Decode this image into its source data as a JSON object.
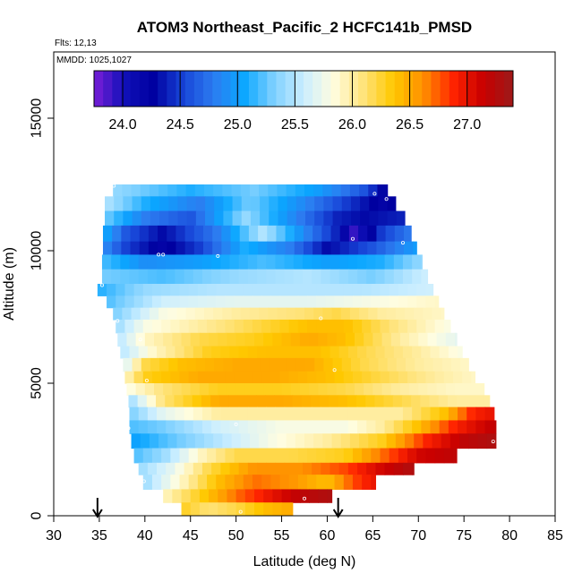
{
  "chart_data": {
    "type": "heatmap",
    "title": "ATOM3 Northeast_Pacific_2 HCFC141b_PMSD",
    "note_flights": "Flts: 12,13",
    "note_dates": "MMDD: 1025,1027",
    "xlabel": "Latitude (deg N)",
    "ylabel": "Altitude (m)",
    "xlim": [
      30,
      85
    ],
    "ylim": [
      0,
      17500
    ],
    "x_ticks": [
      30,
      35,
      40,
      45,
      50,
      55,
      60,
      65,
      70,
      75,
      80,
      85
    ],
    "y_ticks": [
      0,
      5000,
      10000,
      15000
    ],
    "colorbar": {
      "min": 23.75,
      "max": 27.4,
      "ticks": [
        24.0,
        24.5,
        25.0,
        25.5,
        26.0,
        26.5,
        27.0
      ],
      "tick_labels": [
        "24.0",
        "24.5",
        "25.0",
        "25.5",
        "26.0",
        "26.5",
        "27.0"
      ],
      "colors": [
        "#7a1ed8",
        "#1010b8",
        "#0000a0",
        "#1846d8",
        "#2c7cf0",
        "#0aa6ff",
        "#7dd0ff",
        "#cbeeff",
        "#fffde0",
        "#ffe37a",
        "#ffc800",
        "#ff9000",
        "#ff2400",
        "#c80000",
        "#9c1a1a"
      ]
    },
    "grid": false,
    "arrows_latitude": [
      34.8,
      61.2
    ],
    "layers": [
      {
        "alt": [
          12050,
          12500
        ],
        "lat": [
          36.5,
          66.6
        ],
        "values": [
          [
            36.5,
            25.4
          ],
          [
            45.0,
            25.1
          ],
          [
            52.0,
            25.3
          ],
          [
            59.0,
            25.0
          ],
          [
            64.0,
            24.6
          ],
          [
            66.6,
            24.2
          ]
        ]
      },
      {
        "alt": [
          11500,
          12050
        ],
        "lat": [
          35.6,
          67.5
        ],
        "values": [
          [
            35.6,
            25.5
          ],
          [
            40.0,
            25.1
          ],
          [
            46.0,
            24.8
          ],
          [
            51.5,
            25.3
          ],
          [
            57.0,
            24.9
          ],
          [
            62.0,
            24.5
          ],
          [
            66.0,
            24.2
          ],
          [
            67.5,
            24.3
          ]
        ]
      },
      {
        "alt": [
          10950,
          11500
        ],
        "lat": [
          35.6,
          68.5
        ],
        "values": [
          [
            35.6,
            25.3
          ],
          [
            40.0,
            24.8
          ],
          [
            45.0,
            24.6
          ],
          [
            51.0,
            25.4
          ],
          [
            57.0,
            24.8
          ],
          [
            61.0,
            24.4
          ],
          [
            64.0,
            24.3
          ],
          [
            68.5,
            24.4
          ]
        ]
      },
      {
        "alt": [
          10350,
          10950
        ],
        "lat": [
          35.4,
          69.2
        ],
        "values": [
          [
            35.4,
            25.1
          ],
          [
            38.0,
            24.6
          ],
          [
            42.0,
            24.3
          ],
          [
            48.0,
            24.8
          ],
          [
            53.0,
            25.5
          ],
          [
            58.0,
            24.8
          ],
          [
            61.0,
            24.4
          ],
          [
            63.0,
            23.9
          ],
          [
            66.0,
            24.5
          ],
          [
            69.2,
            24.8
          ]
        ]
      },
      {
        "alt": [
          9850,
          10350
        ],
        "lat": [
          35.4,
          69.8
        ],
        "values": [
          [
            35.4,
            24.9
          ],
          [
            38.0,
            24.5
          ],
          [
            42.0,
            24.2
          ],
          [
            46.0,
            24.5
          ],
          [
            51.0,
            25.1
          ],
          [
            56.0,
            24.8
          ],
          [
            60.0,
            24.3
          ],
          [
            65.0,
            24.6
          ],
          [
            69.8,
            25.0
          ]
        ]
      },
      {
        "alt": [
          9300,
          9850
        ],
        "lat": [
          35.3,
          70.4
        ],
        "values": [
          [
            35.3,
            25.2
          ],
          [
            40.0,
            24.9
          ],
          [
            46.0,
            25.0
          ],
          [
            53.0,
            25.2
          ],
          [
            60.0,
            25.0
          ],
          [
            66.0,
            25.1
          ],
          [
            70.4,
            25.4
          ]
        ]
      },
      {
        "alt": [
          8750,
          9300
        ],
        "lat": [
          35.3,
          71.0
        ],
        "values": [
          [
            35.3,
            25.3
          ],
          [
            42.0,
            25.2
          ],
          [
            50.0,
            25.4
          ],
          [
            58.0,
            25.5
          ],
          [
            65.0,
            25.3
          ],
          [
            71.0,
            25.6
          ]
        ]
      },
      {
        "alt": [
          8300,
          8750
        ],
        "lat": [
          34.8,
          71.6
        ],
        "values": [
          [
            34.8,
            25.1
          ],
          [
            40.0,
            25.4
          ],
          [
            48.0,
            25.5
          ],
          [
            56.0,
            25.5
          ],
          [
            64.0,
            25.5
          ],
          [
            71.6,
            25.6
          ]
        ]
      },
      {
        "alt": [
          7850,
          8300
        ],
        "lat": [
          35.8,
          72.2
        ],
        "values": [
          [
            35.8,
            25.2
          ],
          [
            42.0,
            25.6
          ],
          [
            50.0,
            25.7
          ],
          [
            58.0,
            25.7
          ],
          [
            65.0,
            25.8
          ],
          [
            72.2,
            25.9
          ]
        ]
      },
      {
        "alt": [
          7400,
          7850
        ],
        "lat": [
          36.5,
          72.8
        ],
        "values": [
          [
            36.5,
            25.3
          ],
          [
            42.0,
            25.8
          ],
          [
            50.0,
            26.0
          ],
          [
            57.0,
            26.1
          ],
          [
            61.0,
            26.2
          ],
          [
            66.0,
            26.0
          ],
          [
            72.8,
            25.9
          ]
        ]
      },
      {
        "alt": [
          6900,
          7400
        ],
        "lat": [
          36.8,
          73.5
        ],
        "values": [
          [
            36.8,
            25.4
          ],
          [
            40.0,
            25.8
          ],
          [
            46.0,
            26.0
          ],
          [
            52.0,
            26.2
          ],
          [
            58.0,
            26.4
          ],
          [
            62.0,
            26.4
          ],
          [
            67.0,
            26.1
          ],
          [
            73.5,
            25.8
          ]
        ]
      },
      {
        "alt": [
          6400,
          6900
        ],
        "lat": [
          37.0,
          74.2
        ],
        "values": [
          [
            37.0,
            25.5
          ],
          [
            40.0,
            25.9
          ],
          [
            46.0,
            26.2
          ],
          [
            52.0,
            26.3
          ],
          [
            58.0,
            26.5
          ],
          [
            62.0,
            26.4
          ],
          [
            68.0,
            26.0
          ],
          [
            74.2,
            25.7
          ]
        ]
      },
      {
        "alt": [
          5950,
          6400
        ],
        "lat": [
          37.3,
          74.8
        ],
        "values": [
          [
            37.3,
            25.5
          ],
          [
            41.0,
            25.9
          ],
          [
            47.0,
            26.3
          ],
          [
            53.0,
            26.4
          ],
          [
            59.0,
            26.4
          ],
          [
            64.0,
            26.2
          ],
          [
            70.0,
            26.0
          ],
          [
            74.8,
            25.8
          ]
        ]
      },
      {
        "alt": [
          5450,
          5950
        ],
        "lat": [
          37.6,
          75.5
        ],
        "values": [
          [
            37.6,
            25.6
          ],
          [
            40.0,
            26.2
          ],
          [
            44.0,
            26.4
          ],
          [
            50.0,
            26.5
          ],
          [
            58.0,
            26.5
          ],
          [
            64.0,
            26.2
          ],
          [
            70.0,
            26.0
          ],
          [
            75.5,
            25.9
          ]
        ]
      },
      {
        "alt": [
          5000,
          5450
        ],
        "lat": [
          37.8,
          76.2
        ],
        "values": [
          [
            37.8,
            25.9
          ],
          [
            40.0,
            26.3
          ],
          [
            46.0,
            26.5
          ],
          [
            54.0,
            26.5
          ],
          [
            60.0,
            26.4
          ],
          [
            66.0,
            26.2
          ],
          [
            72.0,
            26.0
          ],
          [
            76.2,
            25.9
          ]
        ]
      },
      {
        "alt": [
          4550,
          5000
        ],
        "lat": [
          38.0,
          77.2
        ],
        "values": [
          [
            38.0,
            25.8
          ],
          [
            42.0,
            26.1
          ],
          [
            48.0,
            26.3
          ],
          [
            55.0,
            26.3
          ],
          [
            62.0,
            26.2
          ],
          [
            68.0,
            26.0
          ],
          [
            74.0,
            25.9
          ],
          [
            77.2,
            25.9
          ]
        ]
      },
      {
        "alt": [
          4100,
          4550
        ],
        "lat": [
          38.2,
          77.8
        ],
        "values": [
          [
            38.2,
            25.4
          ],
          [
            42.0,
            26.1
          ],
          [
            48.0,
            26.5
          ],
          [
            55.0,
            26.5
          ],
          [
            62.0,
            26.4
          ],
          [
            68.0,
            26.2
          ],
          [
            74.0,
            26.0
          ],
          [
            77.8,
            26.0
          ]
        ]
      },
      {
        "alt": [
          3600,
          4100
        ],
        "lat": [
          38.3,
          78.3
        ],
        "values": [
          [
            38.3,
            25.3
          ],
          [
            42.0,
            25.7
          ],
          [
            48.0,
            26.0
          ],
          [
            55.0,
            26.0
          ],
          [
            62.0,
            26.0
          ],
          [
            68.0,
            26.0
          ],
          [
            73.0,
            26.4
          ],
          [
            76.0,
            26.9
          ],
          [
            78.3,
            27.0
          ]
        ]
      },
      {
        "alt": [
          3100,
          3600
        ],
        "lat": [
          38.3,
          78.5
        ],
        "values": [
          [
            38.3,
            25.2
          ],
          [
            42.0,
            25.3
          ],
          [
            48.0,
            25.6
          ],
          [
            55.0,
            25.8
          ],
          [
            62.0,
            25.8
          ],
          [
            66.0,
            26.0
          ],
          [
            70.0,
            26.4
          ],
          [
            74.0,
            26.9
          ],
          [
            78.5,
            27.2
          ]
        ]
      },
      {
        "alt": [
          2550,
          3100
        ],
        "lat": [
          38.5,
          78.5
        ],
        "values": [
          [
            38.5,
            25.0
          ],
          [
            42.0,
            25.2
          ],
          [
            48.0,
            25.5
          ],
          [
            54.0,
            25.8
          ],
          [
            60.0,
            26.0
          ],
          [
            66.0,
            26.3
          ],
          [
            71.0,
            26.9
          ],
          [
            75.0,
            27.2
          ],
          [
            78.5,
            27.3
          ]
        ]
      },
      {
        "alt": [
          2000,
          2550
        ],
        "lat": [
          38.8,
          74.2
        ],
        "values": [
          [
            38.8,
            25.2
          ],
          [
            42.0,
            25.4
          ],
          [
            46.0,
            25.9
          ],
          [
            50.0,
            26.2
          ],
          [
            56.0,
            26.2
          ],
          [
            62.0,
            26.3
          ],
          [
            66.0,
            26.7
          ],
          [
            70.0,
            27.1
          ],
          [
            74.2,
            27.2
          ]
        ]
      },
      {
        "alt": [
          1550,
          2000
        ],
        "lat": [
          39.3,
          69.5
        ],
        "values": [
          [
            39.3,
            25.4
          ],
          [
            43.0,
            25.7
          ],
          [
            47.0,
            26.2
          ],
          [
            52.0,
            26.6
          ],
          [
            57.0,
            26.6
          ],
          [
            62.0,
            26.8
          ],
          [
            66.0,
            27.1
          ],
          [
            69.5,
            27.3
          ]
        ]
      },
      {
        "alt": [
          1000,
          1550
        ],
        "lat": [
          39.8,
          65.3
        ],
        "values": [
          [
            39.8,
            25.4
          ],
          [
            44.0,
            25.9
          ],
          [
            48.0,
            26.4
          ],
          [
            52.0,
            26.7
          ],
          [
            56.0,
            26.6
          ],
          [
            60.0,
            26.4
          ],
          [
            63.0,
            26.8
          ],
          [
            65.3,
            27.0
          ]
        ]
      },
      {
        "alt": [
          500,
          1000
        ],
        "lat": [
          42.0,
          60.5
        ],
        "values": [
          [
            42.0,
            25.9
          ],
          [
            46.0,
            26.3
          ],
          [
            50.0,
            26.7
          ],
          [
            54.0,
            27.0
          ],
          [
            57.0,
            27.2
          ],
          [
            60.5,
            27.3
          ]
        ]
      },
      {
        "alt": [
          0,
          500
        ],
        "lat": [
          44.0,
          56.2
        ],
        "values": [
          [
            44.0,
            26.3
          ],
          [
            47.0,
            26.1
          ],
          [
            50.0,
            26.2
          ],
          [
            53.0,
            26.4
          ],
          [
            56.2,
            26.5
          ]
        ]
      }
    ],
    "sample_points": [
      [
        36.6,
        12450
      ],
      [
        35.4,
        11650
      ],
      [
        65.2,
        12150
      ],
      [
        66.5,
        11950
      ],
      [
        41.5,
        9850
      ],
      [
        42.0,
        9850
      ],
      [
        48.0,
        9800
      ],
      [
        62.8,
        10450
      ],
      [
        68.3,
        10300
      ],
      [
        35.3,
        8700
      ],
      [
        37.0,
        7350
      ],
      [
        59.3,
        7450
      ],
      [
        39.5,
        6650
      ],
      [
        60.8,
        5500
      ],
      [
        40.2,
        5100
      ],
      [
        50.0,
        3450
      ],
      [
        38.2,
        3300
      ],
      [
        78.2,
        2800
      ],
      [
        39.9,
        1300
      ],
      [
        57.5,
        650
      ],
      [
        50.5,
        150
      ]
    ]
  }
}
